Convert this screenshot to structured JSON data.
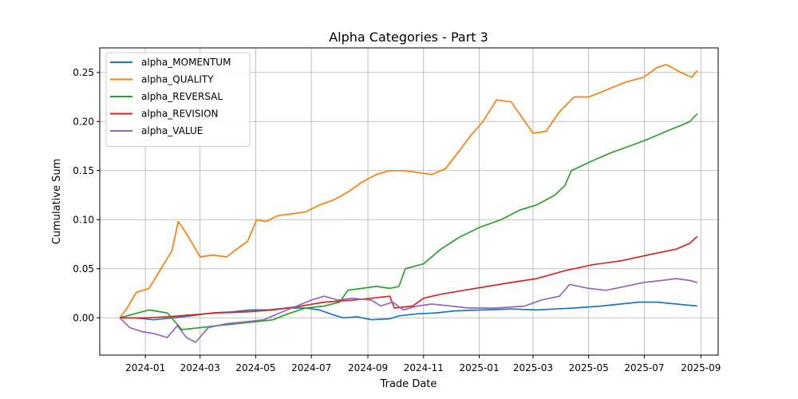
{
  "chart_data": {
    "type": "line",
    "title": "Alpha Categories - Part 3",
    "xlabel": "Trade Date",
    "ylabel": "Cumulative Sum",
    "xlim": [
      "2023-11-12",
      "2025-09-20"
    ],
    "ylim": [
      -0.038,
      0.275
    ],
    "grid": true,
    "legend_position": "upper-left",
    "x_ticks": [
      "2024-01",
      "2024-03",
      "2024-05",
      "2024-07",
      "2024-09",
      "2024-11",
      "2025-01",
      "2025-03",
      "2025-05",
      "2025-07",
      "2025-09"
    ],
    "y_ticks": [
      0.0,
      0.05,
      0.1,
      0.15,
      0.2,
      0.25
    ],
    "y_tick_labels": [
      "0.00",
      "0.05",
      "0.10",
      "0.15",
      "0.20",
      "0.25"
    ],
    "series": [
      {
        "name": "alpha_MOMENTUM",
        "color": "#1f77b4",
        "points": [
          [
            "2023-12-04",
            0.0
          ],
          [
            "2023-12-20",
            0.0
          ],
          [
            "2024-01-10",
            -0.002
          ],
          [
            "2024-02-01",
            0.0
          ],
          [
            "2024-02-20",
            0.002
          ],
          [
            "2024-03-15",
            0.005
          ],
          [
            "2024-04-05",
            0.006
          ],
          [
            "2024-04-25",
            0.008
          ],
          [
            "2024-05-15",
            0.008
          ],
          [
            "2024-06-05",
            0.01
          ],
          [
            "2024-06-25",
            0.01
          ],
          [
            "2024-07-10",
            0.008
          ],
          [
            "2024-07-25",
            0.003
          ],
          [
            "2024-08-05",
            0.0
          ],
          [
            "2024-08-20",
            0.001
          ],
          [
            "2024-09-05",
            -0.002
          ],
          [
            "2024-09-25",
            -0.001
          ],
          [
            "2024-10-05",
            0.002
          ],
          [
            "2024-10-25",
            0.004
          ],
          [
            "2024-11-15",
            0.005
          ],
          [
            "2024-12-05",
            0.007
          ],
          [
            "2025-01-05",
            0.008
          ],
          [
            "2025-02-05",
            0.009
          ],
          [
            "2025-03-05",
            0.008
          ],
          [
            "2025-03-25",
            0.009
          ],
          [
            "2025-04-15",
            0.01
          ],
          [
            "2025-05-15",
            0.012
          ],
          [
            "2025-06-05",
            0.014
          ],
          [
            "2025-06-25",
            0.016
          ],
          [
            "2025-07-15",
            0.016
          ],
          [
            "2025-08-05",
            0.014
          ],
          [
            "2025-08-28",
            0.012
          ]
        ]
      },
      {
        "name": "alpha_QUALITY",
        "color": "#ff7f0e",
        "points": [
          [
            "2023-12-04",
            0.0
          ],
          [
            "2023-12-12",
            0.01
          ],
          [
            "2023-12-22",
            0.026
          ],
          [
            "2024-01-05",
            0.03
          ],
          [
            "2024-01-18",
            0.05
          ],
          [
            "2024-01-30",
            0.068
          ],
          [
            "2024-02-06",
            0.098
          ],
          [
            "2024-02-12",
            0.09
          ],
          [
            "2024-02-20",
            0.078
          ],
          [
            "2024-03-01",
            0.062
          ],
          [
            "2024-03-15",
            0.064
          ],
          [
            "2024-03-30",
            0.062
          ],
          [
            "2024-04-10",
            0.07
          ],
          [
            "2024-04-22",
            0.078
          ],
          [
            "2024-05-02",
            0.1
          ],
          [
            "2024-05-12",
            0.098
          ],
          [
            "2024-05-25",
            0.104
          ],
          [
            "2024-06-10",
            0.106
          ],
          [
            "2024-06-25",
            0.108
          ],
          [
            "2024-07-10",
            0.115
          ],
          [
            "2024-07-25",
            0.12
          ],
          [
            "2024-08-10",
            0.128
          ],
          [
            "2024-08-25",
            0.138
          ],
          [
            "2024-09-10",
            0.146
          ],
          [
            "2024-09-25",
            0.15
          ],
          [
            "2024-10-10",
            0.15
          ],
          [
            "2024-10-25",
            0.148
          ],
          [
            "2024-11-10",
            0.146
          ],
          [
            "2024-11-25",
            0.152
          ],
          [
            "2024-12-10",
            0.17
          ],
          [
            "2024-12-22",
            0.185
          ],
          [
            "2025-01-05",
            0.2
          ],
          [
            "2025-01-20",
            0.222
          ],
          [
            "2025-02-05",
            0.22
          ],
          [
            "2025-02-20",
            0.2
          ],
          [
            "2025-03-01",
            0.188
          ],
          [
            "2025-03-15",
            0.19
          ],
          [
            "2025-03-30",
            0.21
          ],
          [
            "2025-04-15",
            0.225
          ],
          [
            "2025-05-01",
            0.225
          ],
          [
            "2025-05-20",
            0.232
          ],
          [
            "2025-06-10",
            0.24
          ],
          [
            "2025-06-30",
            0.245
          ],
          [
            "2025-07-15",
            0.255
          ],
          [
            "2025-07-25",
            0.258
          ],
          [
            "2025-08-10",
            0.25
          ],
          [
            "2025-08-22",
            0.245
          ],
          [
            "2025-08-28",
            0.252
          ]
        ]
      },
      {
        "name": "alpha_REVERSAL",
        "color": "#2ca02c",
        "points": [
          [
            "2023-12-04",
            0.0
          ],
          [
            "2023-12-20",
            0.004
          ],
          [
            "2024-01-05",
            0.008
          ],
          [
            "2024-01-25",
            0.005
          ],
          [
            "2024-02-10",
            -0.012
          ],
          [
            "2024-03-01",
            -0.01
          ],
          [
            "2024-03-20",
            -0.008
          ],
          [
            "2024-04-10",
            -0.006
          ],
          [
            "2024-05-01",
            -0.004
          ],
          [
            "2024-05-20",
            -0.002
          ],
          [
            "2024-06-05",
            0.004
          ],
          [
            "2024-06-25",
            0.01
          ],
          [
            "2024-07-15",
            0.012
          ],
          [
            "2024-08-01",
            0.016
          ],
          [
            "2024-08-10",
            0.028
          ],
          [
            "2024-08-25",
            0.03
          ],
          [
            "2024-09-10",
            0.032
          ],
          [
            "2024-09-25",
            0.03
          ],
          [
            "2024-10-05",
            0.032
          ],
          [
            "2024-10-12",
            0.05
          ],
          [
            "2024-11-01",
            0.055
          ],
          [
            "2024-11-20",
            0.07
          ],
          [
            "2024-12-10",
            0.082
          ],
          [
            "2025-01-01",
            0.092
          ],
          [
            "2025-01-25",
            0.1
          ],
          [
            "2025-02-15",
            0.11
          ],
          [
            "2025-03-05",
            0.115
          ],
          [
            "2025-03-25",
            0.125
          ],
          [
            "2025-04-05",
            0.135
          ],
          [
            "2025-04-12",
            0.15
          ],
          [
            "2025-05-05",
            0.16
          ],
          [
            "2025-05-25",
            0.168
          ],
          [
            "2025-06-15",
            0.175
          ],
          [
            "2025-07-05",
            0.182
          ],
          [
            "2025-07-25",
            0.19
          ],
          [
            "2025-08-10",
            0.196
          ],
          [
            "2025-08-20",
            0.2
          ],
          [
            "2025-08-28",
            0.208
          ]
        ]
      },
      {
        "name": "alpha_REVISION",
        "color": "#d62728",
        "points": [
          [
            "2023-12-04",
            0.0
          ],
          [
            "2024-01-01",
            0.0
          ],
          [
            "2024-01-25",
            0.001
          ],
          [
            "2024-02-20",
            0.003
          ],
          [
            "2024-03-20",
            0.005
          ],
          [
            "2024-04-20",
            0.006
          ],
          [
            "2024-05-20",
            0.008
          ],
          [
            "2024-06-20",
            0.012
          ],
          [
            "2024-07-15",
            0.016
          ],
          [
            "2024-08-15",
            0.018
          ],
          [
            "2024-09-05",
            0.02
          ],
          [
            "2024-09-25",
            0.022
          ],
          [
            "2024-09-30",
            0.01
          ],
          [
            "2024-10-20",
            0.012
          ],
          [
            "2024-11-01",
            0.02
          ],
          [
            "2024-11-20",
            0.024
          ],
          [
            "2024-12-15",
            0.028
          ],
          [
            "2025-01-10",
            0.032
          ],
          [
            "2025-02-05",
            0.036
          ],
          [
            "2025-03-05",
            0.04
          ],
          [
            "2025-04-05",
            0.048
          ],
          [
            "2025-05-05",
            0.054
          ],
          [
            "2025-06-05",
            0.058
          ],
          [
            "2025-07-05",
            0.064
          ],
          [
            "2025-08-05",
            0.07
          ],
          [
            "2025-08-20",
            0.076
          ],
          [
            "2025-08-28",
            0.083
          ]
        ]
      },
      {
        "name": "alpha_VALUE",
        "color": "#9467bd",
        "points": [
          [
            "2023-12-04",
            0.0
          ],
          [
            "2023-12-15",
            -0.01
          ],
          [
            "2023-12-28",
            -0.014
          ],
          [
            "2024-01-10",
            -0.016
          ],
          [
            "2024-01-25",
            -0.02
          ],
          [
            "2024-02-05",
            -0.008
          ],
          [
            "2024-02-15",
            -0.02
          ],
          [
            "2024-02-25",
            -0.025
          ],
          [
            "2024-03-10",
            -0.01
          ],
          [
            "2024-03-30",
            -0.006
          ],
          [
            "2024-04-20",
            -0.004
          ],
          [
            "2024-05-10",
            -0.002
          ],
          [
            "2024-05-30",
            0.006
          ],
          [
            "2024-06-15",
            0.012
          ],
          [
            "2024-07-01",
            0.018
          ],
          [
            "2024-07-15",
            0.022
          ],
          [
            "2024-07-30",
            0.018
          ],
          [
            "2024-08-15",
            0.02
          ],
          [
            "2024-09-05",
            0.018
          ],
          [
            "2024-09-15",
            0.012
          ],
          [
            "2024-09-28",
            0.016
          ],
          [
            "2024-10-10",
            0.008
          ],
          [
            "2024-10-25",
            0.012
          ],
          [
            "2024-11-10",
            0.014
          ],
          [
            "2024-12-01",
            0.012
          ],
          [
            "2024-12-20",
            0.01
          ],
          [
            "2025-01-20",
            0.01
          ],
          [
            "2025-02-20",
            0.012
          ],
          [
            "2025-03-10",
            0.018
          ],
          [
            "2025-03-30",
            0.022
          ],
          [
            "2025-04-10",
            0.034
          ],
          [
            "2025-05-01",
            0.03
          ],
          [
            "2025-05-20",
            0.028
          ],
          [
            "2025-06-10",
            0.032
          ],
          [
            "2025-06-30",
            0.036
          ],
          [
            "2025-07-20",
            0.038
          ],
          [
            "2025-08-05",
            0.04
          ],
          [
            "2025-08-20",
            0.038
          ],
          [
            "2025-08-28",
            0.036
          ]
        ]
      }
    ]
  }
}
